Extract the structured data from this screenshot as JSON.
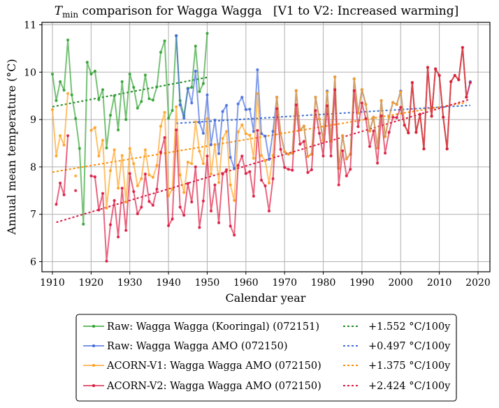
{
  "chart_data": {
    "type": "line",
    "title": {
      "main": "T",
      "subscript": "min",
      "rest": " comparison for Wagga Wagga   [V1 to V2: Increased warming]"
    },
    "xlabel": "Calendar year",
    "ylabel": "Annual mean temperature (°C)",
    "xlim": [
      1907.3,
      2023
    ],
    "ylim": [
      5.8,
      11.05
    ],
    "xticks": [
      1910,
      1920,
      1930,
      1940,
      1950,
      1960,
      1970,
      1980,
      1990,
      2000,
      2010,
      2020
    ],
    "yticks": [
      6,
      7,
      8,
      9,
      10,
      11
    ],
    "grid": true,
    "legend_position": "below-center",
    "series": [
      {
        "name": "Raw: Wagga Wagga (Kooringal) (072151)",
        "color": "#2ca02c",
        "kind": "line-markers",
        "x": [
          1910,
          1911,
          1912,
          1913,
          1914,
          1915,
          1916,
          1917,
          1918,
          1919,
          1920,
          1921,
          1922,
          1923,
          1924,
          1925,
          1926,
          1927,
          1928,
          1929,
          1930,
          1931,
          1932,
          1933,
          1934,
          1935,
          1936,
          1937,
          1938,
          1939,
          1940,
          1941,
          1942,
          1943,
          1944,
          1945,
          1946,
          1947,
          1948,
          1949,
          1950
        ],
        "y": [
          9.96,
          9.4,
          9.8,
          9.62,
          10.68,
          9.52,
          9.02,
          8.39,
          6.79,
          10.21,
          9.96,
          10.02,
          9.42,
          9.63,
          8.4,
          9.09,
          9.5,
          8.78,
          9.8,
          9.0,
          9.96,
          9.68,
          9.24,
          9.38,
          9.94,
          9.44,
          9.41,
          9.69,
          10.42,
          10.66,
          9.03,
          9.19,
          10.77,
          9.4,
          9.08,
          9.66,
          9.68,
          10.55,
          9.59,
          9.76,
          10.82
        ]
      },
      {
        "name": "Raw: Wagga Wagga AMO (072150)",
        "color": "#4169e1",
        "kind": "line-markers",
        "x": [
          1942,
          1943,
          1944,
          1945,
          1946,
          1947,
          1948,
          1949,
          1950,
          1951,
          1952,
          1953,
          1954,
          1955,
          1956,
          1957,
          1958,
          1959,
          1960,
          1961,
          1962,
          1963,
          1964,
          1965,
          1966,
          1967,
          1968,
          1969,
          1970,
          1971,
          1972,
          1973,
          1974,
          1975,
          1976,
          1977,
          1978,
          1979,
          1980,
          1981,
          1982,
          1983,
          1984,
          1985,
          1986,
          1987,
          1988,
          1989,
          1990,
          1991,
          1992,
          1993,
          1994,
          1995,
          1996,
          1997,
          1998,
          1999,
          2000,
          2001,
          2002,
          2003,
          2004,
          2005,
          2006,
          2007,
          2008,
          2009,
          2010,
          2011,
          2012,
          2013,
          2014,
          2015,
          2016,
          2017,
          2018
        ],
        "y": [
          10.77,
          9.31,
          9.03,
          9.65,
          9.35,
          10.02,
          8.94,
          8.71,
          9.52,
          8.47,
          8.99,
          8.28,
          9.17,
          9.3,
          8.2,
          7.97,
          9.33,
          9.47,
          9.21,
          9.22,
          8.75,
          10.05,
          8.7,
          8.65,
          8.16,
          8.75,
          9.47,
          8.71,
          8.32,
          8.27,
          8.29,
          9.61,
          8.78,
          8.86,
          8.22,
          8.27,
          9.47,
          9.01,
          8.56,
          9.6,
          8.54,
          9.9,
          7.97,
          8.66,
          8.17,
          8.27,
          9.86,
          9.14,
          9.63,
          9.32,
          8.76,
          9.05,
          8.4,
          9.4,
          8.64,
          9.05,
          9.36,
          9.32,
          9.6,
          8.88,
          8.72,
          9.78,
          8.73,
          9.11,
          8.38,
          10.1,
          9.07,
          10.07,
          9.93,
          9.05,
          8.38,
          9.8,
          9.93,
          9.84,
          10.52,
          9.47,
          9.8
        ]
      },
      {
        "name": "ACORN-V1: Wagga Wagga AMO (072150)",
        "color": "#ff9f1c",
        "kind": "line-markers",
        "x": [
          1910,
          1911,
          1912,
          1913,
          1914,
          1915,
          1916,
          1917,
          1918,
          1919,
          1920,
          1921,
          1922,
          1923,
          1924,
          1925,
          1926,
          1927,
          1928,
          1929,
          1930,
          1931,
          1932,
          1933,
          1934,
          1935,
          1936,
          1937,
          1938,
          1939,
          1940,
          1941,
          1942,
          1943,
          1944,
          1945,
          1946,
          1947,
          1948,
          1949,
          1950,
          1951,
          1952,
          1953,
          1954,
          1955,
          1956,
          1957,
          1958,
          1959,
          1960,
          1961,
          1962,
          1963,
          1964,
          1965,
          1966,
          1967,
          1968,
          1969,
          1970,
          1971,
          1972,
          1973,
          1974,
          1975,
          1976,
          1977,
          1978,
          1979,
          1980,
          1981,
          1982,
          1983,
          1984,
          1985,
          1986,
          1987,
          1988,
          1989,
          1990,
          1991,
          1992,
          1993,
          1994,
          1995,
          1996,
          1997,
          1998,
          1999,
          2000,
          2001,
          2002,
          2003,
          2004,
          2005,
          2006,
          2007,
          2008,
          2009,
          2010,
          2011,
          2012,
          2013,
          2014,
          2015,
          2016,
          2017
        ],
        "y": [
          9.21,
          8.23,
          8.66,
          8.46,
          9.55,
          null,
          7.81,
          null,
          null,
          null,
          8.77,
          8.83,
          8.23,
          8.56,
          7.13,
          7.92,
          8.36,
          7.55,
          8.24,
          7.26,
          8.39,
          8.07,
          7.6,
          7.75,
          8.36,
          7.83,
          7.78,
          8.03,
          8.86,
          9.15,
          7.39,
          7.53,
          9.27,
          7.83,
          7.46,
          8.1,
          8.07,
          8.95,
          8.33,
          8.07,
          9.02,
          7.85,
          8.47,
          7.67,
          8.6,
          8.75,
          7.62,
          7.29,
          8.74,
          8.89,
          8.7,
          8.67,
          8.18,
          9.55,
          8.24,
          8.13,
          7.66,
          8.24,
          9.47,
          8.71,
          8.32,
          8.27,
          8.29,
          9.61,
          8.78,
          8.86,
          8.22,
          8.27,
          9.47,
          9.01,
          8.56,
          9.58,
          8.54,
          9.9,
          7.97,
          8.66,
          8.17,
          8.27,
          9.86,
          9.14,
          9.63,
          9.32,
          8.76,
          9.05,
          8.4,
          9.4,
          8.64,
          9.05,
          9.36,
          9.32,
          9.58,
          8.88,
          8.72,
          9.78,
          8.73,
          9.11,
          8.38,
          10.1,
          9.07,
          10.07,
          9.93,
          9.05,
          8.38,
          9.8,
          9.93,
          9.84,
          10.52,
          9.47
        ]
      },
      {
        "name": "ACORN-V2: Wagga Wagga AMO (072150)",
        "color": "#dc143c",
        "kind": "line-markers",
        "x": [
          1911,
          1912,
          1913,
          1914,
          1915,
          1916,
          1917,
          1918,
          1919,
          1920,
          1921,
          1922,
          1923,
          1924,
          1925,
          1926,
          1927,
          1928,
          1929,
          1930,
          1931,
          1932,
          1933,
          1934,
          1935,
          1936,
          1937,
          1938,
          1939,
          1940,
          1941,
          1942,
          1943,
          1944,
          1945,
          1946,
          1947,
          1948,
          1949,
          1950,
          1951,
          1952,
          1953,
          1954,
          1955,
          1956,
          1957,
          1958,
          1959,
          1960,
          1961,
          1962,
          1963,
          1964,
          1965,
          1966,
          1967,
          1968,
          1969,
          1970,
          1971,
          1972,
          1973,
          1974,
          1975,
          1976,
          1977,
          1978,
          1979,
          1980,
          1981,
          1982,
          1983,
          1984,
          1985,
          1986,
          1987,
          1988,
          1989,
          1990,
          1991,
          1992,
          1993,
          1994,
          1995,
          1996,
          1997,
          1998,
          1999,
          2000,
          2001,
          2002,
          2003,
          2004,
          2005,
          2006,
          2007,
          2008,
          2009,
          2010,
          2011,
          2012,
          2013,
          2014,
          2015,
          2016,
          2017,
          2018
        ],
        "y": [
          7.21,
          7.66,
          7.41,
          8.66,
          null,
          7.5,
          null,
          null,
          null,
          7.81,
          7.79,
          7.09,
          7.44,
          6.01,
          6.78,
          7.29,
          6.52,
          7.55,
          6.66,
          7.86,
          7.48,
          7.01,
          7.15,
          7.85,
          7.27,
          7.19,
          7.53,
          8.31,
          8.62,
          6.76,
          6.9,
          8.78,
          7.15,
          6.98,
          7.65,
          7.26,
          8.0,
          6.72,
          7.28,
          8.23,
          7.07,
          7.62,
          6.82,
          7.85,
          7.94,
          6.75,
          6.56,
          8.03,
          8.23,
          7.86,
          7.9,
          7.38,
          8.77,
          7.72,
          7.6,
          7.07,
          7.75,
          9.23,
          8.37,
          7.99,
          7.95,
          7.93,
          9.31,
          8.48,
          8.54,
          7.88,
          7.94,
          9.19,
          8.71,
          8.23,
          9.29,
          8.23,
          9.63,
          7.62,
          8.34,
          7.81,
          7.95,
          9.61,
          8.85,
          9.35,
          9.02,
          8.43,
          8.76,
          8.08,
          9.08,
          8.29,
          8.73,
          9.05,
          9.04,
          9.26,
          8.88,
          8.72,
          9.78,
          8.73,
          9.11,
          8.38,
          10.1,
          9.07,
          10.07,
          9.93,
          9.05,
          8.38,
          9.8,
          9.93,
          9.84,
          10.52,
          9.47,
          9.78
        ]
      }
    ],
    "trends": [
      {
        "label": "+1.552 °C/100y",
        "color": "#228b22",
        "x": [
          1910,
          1950
        ],
        "y": [
          9.27,
          9.89
        ]
      },
      {
        "label": "+0.497 °C/100y",
        "color": "#3a6fd8",
        "x": [
          1942,
          2018
        ],
        "y": [
          8.92,
          9.3
        ]
      },
      {
        "label": "+1.375 °C/100y",
        "color": "#ff8c00",
        "x": [
          1910,
          2017
        ],
        "y": [
          7.89,
          9.36
        ]
      },
      {
        "label": "+2.424 °C/100y",
        "color": "#dc143c",
        "x": [
          1911,
          2018
        ],
        "y": [
          6.83,
          9.43
        ]
      }
    ]
  }
}
